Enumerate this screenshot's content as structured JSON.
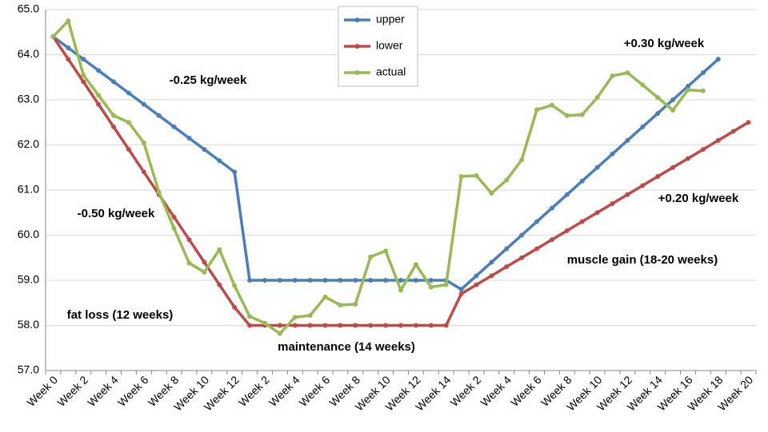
{
  "chart_data": {
    "type": "line",
    "categories": [
      "Week 0",
      null,
      "Week 2",
      null,
      "Week 4",
      null,
      "Week 6",
      null,
      "Week 8",
      null,
      "Week 10",
      null,
      "Week 12",
      null,
      "Week 2",
      null,
      "Week 4",
      null,
      "Week 6",
      null,
      "Week 8",
      null,
      "Week 10",
      null,
      "Week 12",
      null,
      "Week 14",
      null,
      "Week 2",
      null,
      "Week 4",
      null,
      "Week 6",
      null,
      "Week 8",
      null,
      "Week 10",
      null,
      "Week 12",
      null,
      "Week 14",
      null,
      "Week 16",
      null,
      "Week 18",
      null,
      "Week 20"
    ],
    "series": [
      {
        "name": "upper",
        "color": "#4a7ebb",
        "values": [
          64.4,
          64.15,
          63.9,
          63.65,
          63.4,
          63.15,
          62.9,
          62.65,
          62.4,
          62.15,
          61.9,
          61.65,
          61.4,
          59,
          59,
          59,
          59,
          59,
          59,
          59,
          59,
          59,
          59,
          59,
          59,
          59,
          59,
          58.8,
          59.1,
          59.4,
          59.7,
          60.0,
          60.3,
          60.6,
          60.9,
          61.2,
          61.5,
          61.8,
          62.1,
          62.4,
          62.7,
          63.0,
          63.3,
          63.6,
          63.9,
          null,
          null
        ]
      },
      {
        "name": "lower",
        "color": "#be4b48",
        "values": [
          64.4,
          63.9,
          63.4,
          62.9,
          62.4,
          61.9,
          61.4,
          60.9,
          60.4,
          59.9,
          59.4,
          58.9,
          58.4,
          58,
          58,
          58,
          58,
          58,
          58,
          58,
          58,
          58,
          58,
          58,
          58,
          58,
          58,
          58.7,
          58.9,
          59.1,
          59.3,
          59.5,
          59.7,
          59.9,
          60.1,
          60.3,
          60.5,
          60.7,
          60.9,
          61.1,
          61.3,
          61.5,
          61.7,
          61.9,
          62.1,
          62.3,
          62.5
        ]
      },
      {
        "name": "actual",
        "color": "#98b954",
        "values": [
          64.4,
          64.75,
          63.55,
          63.1,
          62.65,
          62.5,
          62.05,
          60.95,
          60.15,
          59.38,
          59.18,
          59.68,
          58.88,
          58.2,
          58.05,
          57.82,
          58.18,
          58.22,
          58.63,
          58.45,
          58.47,
          59.52,
          59.65,
          58.78,
          59.35,
          58.85,
          58.9,
          61.3,
          61.32,
          60.93,
          61.22,
          61.67,
          62.78,
          62.88,
          62.65,
          62.67,
          63.05,
          63.53,
          63.6,
          63.33,
          63.05,
          62.77,
          63.22,
          63.2,
          null,
          null,
          null
        ]
      }
    ],
    "ylim": [
      57,
      65
    ],
    "yticks": [
      {
        "value": 57,
        "label": "57.0"
      },
      {
        "value": 58,
        "label": "58.0"
      },
      {
        "value": 59,
        "label": "59.0"
      },
      {
        "value": 60,
        "label": "60.0"
      },
      {
        "value": 61,
        "label": "61.0"
      },
      {
        "value": 62,
        "label": "62.0"
      },
      {
        "value": 63,
        "label": "63.0"
      },
      {
        "value": 64,
        "label": "64.0"
      },
      {
        "value": 65,
        "label": "65.0"
      }
    ],
    "grid": true,
    "legend": "top",
    "annotations": [
      {
        "text": "-0.25 kg/week",
        "color": "#1f6fb4"
      },
      {
        "text": "-0.50 kg/week",
        "color": "#b02a26"
      },
      {
        "text": "+0.30 kg/week",
        "color": "#1f6fb4"
      },
      {
        "text": "+0.20 kg/week",
        "color": "#b02a26"
      },
      {
        "text": "fat loss (12 weeks)",
        "color": "#000000"
      },
      {
        "text": "maintenance (14 weeks)",
        "color": "#000000"
      },
      {
        "text": "muscle gain (18-20 weeks)",
        "color": "#000000"
      }
    ]
  }
}
